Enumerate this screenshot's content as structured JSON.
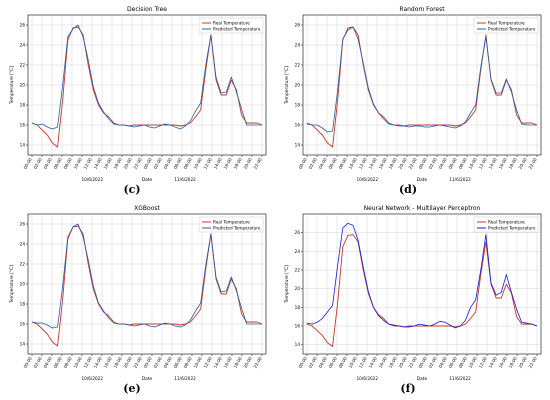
{
  "chart_data": [
    {
      "type": "line",
      "panel": "(c)",
      "title": "Decision Tree",
      "xlabel": "Date",
      "ylabel": "Temperature [°C]",
      "ylim": [
        13,
        27
      ],
      "yticks": [
        14,
        16,
        18,
        20,
        22,
        24,
        26
      ],
      "xticks": [
        "00:00",
        "02:00",
        "04:00",
        "06:00",
        "08:00",
        "10:00",
        "12:00",
        "14:00",
        "16:00",
        "18:00",
        "20:00",
        "22:00",
        "00:00",
        "02:00",
        "04:00",
        "06:00",
        "08:00",
        "10:00",
        "12:00",
        "14:00",
        "16:00",
        "18:00",
        "20:00",
        "22:00"
      ],
      "date_labels": [
        "10/6/2022",
        "11/6/2022"
      ],
      "grid": true,
      "legend": "top-right",
      "series": [
        {
          "name": "Real Temperature",
          "color": "#c0392b",
          "values": [
            16.2,
            16.0,
            15.5,
            15.0,
            14.2,
            13.8,
            18.5,
            24.5,
            25.7,
            25.8,
            25.0,
            22.0,
            19.5,
            18.0,
            17.2,
            16.8,
            16.2,
            16.0,
            16.0,
            15.9,
            16.0,
            16.0,
            16.0,
            16.0,
            16.0,
            16.0,
            16.0,
            16.0,
            16.0,
            15.9,
            16.0,
            16.2,
            16.8,
            17.5,
            21.5,
            25.0,
            20.5,
            19.0,
            19.0,
            20.5,
            19.5,
            17.0,
            16.2,
            16.2,
            16.2,
            16.0
          ]
        },
        {
          "name": "Predicted Temperature",
          "color": "#2a5caa",
          "values": [
            16.2,
            16.0,
            16.1,
            15.8,
            15.6,
            15.8,
            20.0,
            24.8,
            25.6,
            26.0,
            24.8,
            22.5,
            19.8,
            18.2,
            17.3,
            16.6,
            16.1,
            16.0,
            16.0,
            15.9,
            15.8,
            15.9,
            16.0,
            15.8,
            15.7,
            15.9,
            16.1,
            16.0,
            15.8,
            15.6,
            15.9,
            16.4,
            17.4,
            18.2,
            22.0,
            25.0,
            20.8,
            19.2,
            19.3,
            20.8,
            19.3,
            17.6,
            16.0,
            16.0,
            16.0,
            16.0
          ]
        }
      ]
    },
    {
      "type": "line",
      "panel": "(d)",
      "title": "Random Forest",
      "xlabel": "Date",
      "ylabel": "Temperature [°C]",
      "ylim": [
        13,
        27
      ],
      "yticks": [
        14,
        16,
        18,
        20,
        22,
        24,
        26
      ],
      "xticks": [
        "00:00",
        "02:00",
        "04:00",
        "06:00",
        "08:00",
        "10:00",
        "12:00",
        "14:00",
        "16:00",
        "18:00",
        "20:00",
        "22:00",
        "00:00",
        "02:00",
        "04:00",
        "06:00",
        "08:00",
        "10:00",
        "12:00",
        "14:00",
        "16:00",
        "18:00",
        "20:00",
        "22:00"
      ],
      "date_labels": [
        "10/6/2022",
        "11/6/2022"
      ],
      "grid": true,
      "legend": "top-right",
      "series": [
        {
          "name": "Real Temperature",
          "color": "#c0392b",
          "values": [
            16.2,
            16.0,
            15.5,
            15.0,
            14.2,
            13.8,
            18.5,
            24.5,
            25.7,
            25.8,
            25.0,
            22.0,
            19.5,
            18.0,
            17.2,
            16.8,
            16.2,
            16.0,
            16.0,
            15.9,
            16.0,
            16.0,
            16.0,
            16.0,
            16.0,
            16.0,
            16.0,
            16.0,
            16.0,
            15.9,
            16.0,
            16.2,
            16.8,
            17.5,
            21.5,
            25.0,
            20.5,
            19.0,
            19.0,
            20.5,
            19.5,
            17.0,
            16.2,
            16.2,
            16.2,
            16.0
          ]
        },
        {
          "name": "Predicted Temperature",
          "color": "#2a5caa",
          "values": [
            16.1,
            16.0,
            16.0,
            15.7,
            15.3,
            15.4,
            19.5,
            24.6,
            25.5,
            25.8,
            24.6,
            22.2,
            19.7,
            18.1,
            17.2,
            16.6,
            16.1,
            16.0,
            15.9,
            15.9,
            15.8,
            15.9,
            15.9,
            15.8,
            15.8,
            15.9,
            16.0,
            15.9,
            15.8,
            15.7,
            15.9,
            16.3,
            17.2,
            18.0,
            21.8,
            24.8,
            20.6,
            19.2,
            19.2,
            20.6,
            19.3,
            17.5,
            16.1,
            16.0,
            16.0,
            16.0
          ]
        }
      ]
    },
    {
      "type": "line",
      "panel": "(e)",
      "title": "XGBoost",
      "xlabel": "Date",
      "ylabel": "Temperature [°C]",
      "ylim": [
        13,
        27
      ],
      "yticks": [
        14,
        16,
        18,
        20,
        22,
        24,
        26
      ],
      "xticks": [
        "00:00",
        "02:00",
        "04:00",
        "06:00",
        "08:00",
        "10:00",
        "12:00",
        "14:00",
        "16:00",
        "18:00",
        "20:00",
        "22:00",
        "00:00",
        "02:00",
        "04:00",
        "06:00",
        "08:00",
        "10:00",
        "12:00",
        "14:00",
        "16:00",
        "18:00",
        "20:00",
        "22:00"
      ],
      "date_labels": [
        "10/6/2022",
        "11/6/2022"
      ],
      "grid": true,
      "legend": "top-right",
      "series": [
        {
          "name": "Real Temperature",
          "color": "#c0392b",
          "values": [
            16.2,
            16.0,
            15.5,
            15.0,
            14.2,
            13.8,
            18.5,
            24.5,
            25.7,
            25.8,
            25.0,
            22.0,
            19.5,
            18.0,
            17.2,
            16.8,
            16.2,
            16.0,
            16.0,
            15.9,
            16.0,
            16.0,
            16.0,
            16.0,
            16.0,
            16.0,
            16.0,
            16.0,
            16.0,
            15.9,
            16.0,
            16.2,
            16.8,
            17.5,
            21.5,
            25.0,
            20.5,
            19.0,
            19.0,
            20.5,
            19.5,
            17.0,
            16.2,
            16.2,
            16.2,
            16.0
          ]
        },
        {
          "name": "Predicted Temperature",
          "color": "#2a5caa",
          "values": [
            16.2,
            16.1,
            16.1,
            15.9,
            15.6,
            15.7,
            19.8,
            24.7,
            25.7,
            26.0,
            24.7,
            22.4,
            19.8,
            18.1,
            17.3,
            16.6,
            16.1,
            16.0,
            16.0,
            15.9,
            15.8,
            15.9,
            16.0,
            15.8,
            15.7,
            15.9,
            16.1,
            16.0,
            15.8,
            15.7,
            15.9,
            16.4,
            17.3,
            18.1,
            21.9,
            25.0,
            20.7,
            19.2,
            19.3,
            20.7,
            19.3,
            17.6,
            16.0,
            16.0,
            16.0,
            16.0
          ]
        }
      ]
    },
    {
      "type": "line",
      "panel": "(f)",
      "title": "Neural Network - Multilayer Perceptron",
      "xlabel": "Date",
      "ylabel": "Temperature [°C]",
      "ylim": [
        13,
        28
      ],
      "yticks": [
        14,
        16,
        18,
        20,
        22,
        24,
        26
      ],
      "xticks": [
        "00:00",
        "02:00",
        "04:00",
        "06:00",
        "08:00",
        "10:00",
        "12:00",
        "14:00",
        "16:00",
        "18:00",
        "20:00",
        "22:00",
        "00:00",
        "02:00",
        "04:00",
        "06:00",
        "08:00",
        "10:00",
        "12:00",
        "14:00",
        "16:00",
        "18:00",
        "20:00",
        "22:00"
      ],
      "date_labels": [
        "10/6/2022",
        "11/6/2022"
      ],
      "grid": true,
      "legend": "top-right",
      "series": [
        {
          "name": "Real Temperature",
          "color": "#c0392b",
          "values": [
            16.2,
            16.0,
            15.5,
            15.0,
            14.2,
            13.8,
            18.5,
            24.5,
            25.7,
            25.8,
            25.0,
            22.0,
            19.5,
            18.0,
            17.2,
            16.8,
            16.2,
            16.0,
            16.0,
            15.9,
            16.0,
            16.0,
            16.0,
            16.0,
            16.0,
            16.0,
            16.0,
            16.0,
            16.0,
            15.9,
            16.0,
            16.2,
            16.8,
            17.5,
            21.5,
            25.0,
            20.5,
            19.0,
            19.0,
            20.5,
            19.5,
            17.0,
            16.2,
            16.2,
            16.2,
            16.0
          ]
        },
        {
          "name": "Predicted Temperature",
          "color": "#1a1adf",
          "values": [
            16.3,
            16.2,
            16.4,
            16.8,
            17.5,
            18.2,
            22.5,
            26.5,
            27.0,
            26.8,
            25.2,
            22.3,
            19.7,
            18.0,
            17.1,
            16.6,
            16.2,
            16.1,
            16.0,
            15.9,
            15.9,
            16.0,
            16.2,
            16.1,
            16.0,
            16.2,
            16.5,
            16.4,
            16.1,
            15.8,
            16.0,
            16.6,
            18.0,
            18.8,
            22.0,
            25.8,
            20.6,
            19.3,
            19.6,
            21.5,
            19.6,
            17.8,
            16.4,
            16.3,
            16.2,
            16.0
          ]
        }
      ]
    }
  ]
}
